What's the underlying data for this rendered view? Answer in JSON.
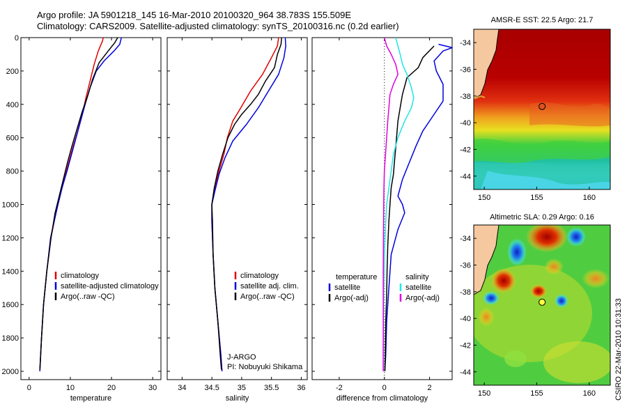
{
  "header": {
    "line1": "Argo profile: JA 5901218_145 16-Mar-2010 20100320_964 38.783S 155.509E",
    "line2": "Climatology: CARS2009. Satellite-adjusted climatology: synTS_20100316.nc (0.2d earlier)"
  },
  "colors": {
    "climatology": "#e00000",
    "satellite": "#0000dd",
    "argo": "#000000",
    "cyan": "#22e5e5",
    "magenta": "#e000e0",
    "land": "#f5c8a0"
  },
  "footer": {
    "credit": "CSIRO 22-Mar-2010 10:31:33"
  },
  "chart_data": [
    {
      "type": "line",
      "id": "temperature",
      "xlabel": "temperature",
      "ylabel": "",
      "xlim": [
        -2,
        32
      ],
      "ylim": [
        2050,
        0
      ],
      "xticks": [
        0,
        10,
        20,
        30
      ],
      "yticks": [
        0,
        200,
        400,
        600,
        800,
        1000,
        1200,
        1400,
        1600,
        1800,
        2000
      ],
      "legend": {
        "placement": "lower-center",
        "entries": [
          "climatology",
          "satellite-adjusted climatology",
          "Argo(..raw -QC)"
        ]
      },
      "series": [
        {
          "name": "climatology",
          "color": "#e00000",
          "points": [
            [
              18.0,
              0
            ],
            [
              17.8,
              20
            ],
            [
              16.8,
              80
            ],
            [
              15.8,
              160
            ],
            [
              14.8,
              260
            ],
            [
              13.8,
              360
            ],
            [
              12.9,
              460
            ],
            [
              11.8,
              560
            ],
            [
              10.6,
              660
            ],
            [
              9.5,
              760
            ],
            [
              8.4,
              860
            ],
            [
              7.4,
              960
            ],
            [
              6.4,
              1060
            ],
            [
              5.3,
              1200
            ],
            [
              4.3,
              1400
            ],
            [
              3.5,
              1600
            ],
            [
              3.0,
              1800
            ],
            [
              2.6,
              2000
            ]
          ]
        },
        {
          "name": "satellite-adjusted climatology",
          "color": "#0000dd",
          "points": [
            [
              22.4,
              0
            ],
            [
              22.0,
              40
            ],
            [
              20.6,
              80
            ],
            [
              18.2,
              140
            ],
            [
              16.3,
              200
            ],
            [
              14.8,
              300
            ],
            [
              13.6,
              400
            ],
            [
              12.5,
              500
            ],
            [
              11.4,
              600
            ],
            [
              10.3,
              700
            ],
            [
              9.2,
              800
            ],
            [
              8.0,
              900
            ],
            [
              7.0,
              1000
            ],
            [
              6.1,
              1100
            ],
            [
              5.2,
              1200
            ],
            [
              4.3,
              1400
            ],
            [
              3.5,
              1600
            ],
            [
              3.0,
              1800
            ],
            [
              2.6,
              2000
            ]
          ]
        },
        {
          "name": "Argo(..raw -QC)",
          "color": "#000000",
          "points": [
            [
              21.5,
              0
            ],
            [
              20.8,
              30
            ],
            [
              19.2,
              80
            ],
            [
              17.0,
              150
            ],
            [
              15.4,
              250
            ],
            [
              14.2,
              350
            ],
            [
              12.8,
              450
            ],
            [
              11.6,
              550
            ],
            [
              10.4,
              650
            ],
            [
              9.3,
              750
            ],
            [
              8.3,
              850
            ],
            [
              7.3,
              950
            ],
            [
              6.3,
              1050
            ],
            [
              5.3,
              1200
            ],
            [
              4.3,
              1400
            ],
            [
              3.5,
              1600
            ],
            [
              3.0,
              1800
            ],
            [
              2.6,
              1990
            ]
          ]
        }
      ]
    },
    {
      "type": "line",
      "id": "salinity",
      "xlabel": "salinity",
      "ylabel": "",
      "xlim": [
        33.75,
        36.1
      ],
      "ylim": [
        2050,
        0
      ],
      "xticks": [
        34,
        34.5,
        35,
        35.5,
        36
      ],
      "xticklabels": [
        "34",
        "34.5",
        "35",
        "35.5",
        "36"
      ],
      "legend": {
        "placement": "lower-right",
        "entries": [
          "climatology",
          "satellite adj. clim.",
          "Argo(..raw -QC)"
        ]
      },
      "annotations": [
        "J-ARGO",
        "PI: Nobuyuki Shikama"
      ],
      "series": [
        {
          "name": "climatology",
          "color": "#e00000",
          "points": [
            [
              35.62,
              0
            ],
            [
              35.6,
              50
            ],
            [
              35.5,
              120
            ],
            [
              35.35,
              220
            ],
            [
              35.15,
              320
            ],
            [
              34.97,
              430
            ],
            [
              34.85,
              500
            ],
            [
              34.76,
              600
            ],
            [
              34.7,
              700
            ],
            [
              34.62,
              800
            ],
            [
              34.55,
              900
            ],
            [
              34.5,
              1000
            ],
            [
              34.5,
              1100
            ],
            [
              34.52,
              1300
            ],
            [
              34.55,
              1500
            ],
            [
              34.6,
              1700
            ],
            [
              34.65,
              1900
            ],
            [
              34.67,
              2000
            ]
          ]
        },
        {
          "name": "satellite adj. clim.",
          "color": "#0000dd",
          "points": [
            [
              35.73,
              0
            ],
            [
              35.74,
              50
            ],
            [
              35.71,
              120
            ],
            [
              35.62,
              220
            ],
            [
              35.45,
              320
            ],
            [
              35.28,
              420
            ],
            [
              35.08,
              520
            ],
            [
              34.85,
              620
            ],
            [
              34.72,
              720
            ],
            [
              34.62,
              820
            ],
            [
              34.55,
              920
            ],
            [
              34.5,
              1000
            ],
            [
              34.5,
              1100
            ],
            [
              34.52,
              1300
            ],
            [
              34.55,
              1500
            ],
            [
              34.6,
              1700
            ],
            [
              34.65,
              1900
            ],
            [
              34.67,
              2000
            ]
          ]
        },
        {
          "name": "Argo(..raw -QC)",
          "color": "#000000",
          "points": [
            [
              35.67,
              0
            ],
            [
              35.66,
              40
            ],
            [
              35.6,
              100
            ],
            [
              35.55,
              180
            ],
            [
              35.4,
              260
            ],
            [
              35.28,
              340
            ],
            [
              35.15,
              400
            ],
            [
              35.0,
              460
            ],
            [
              34.88,
              520
            ],
            [
              34.77,
              600
            ],
            [
              34.68,
              700
            ],
            [
              34.6,
              800
            ],
            [
              34.54,
              900
            ],
            [
              34.5,
              1000
            ],
            [
              34.51,
              1100
            ],
            [
              34.52,
              1300
            ],
            [
              34.55,
              1500
            ],
            [
              34.6,
              1700
            ],
            [
              34.64,
              1900
            ],
            [
              34.66,
              1990
            ]
          ]
        }
      ]
    },
    {
      "type": "line",
      "id": "difference",
      "xlabel": "difference from climatology",
      "ylabel": "",
      "xlim": [
        -3.2,
        3.0
      ],
      "ylim": [
        2050,
        0
      ],
      "xticks": [
        -2,
        0,
        2
      ],
      "legend": {
        "placement": "lower-center",
        "columns": [
          {
            "header": "temperature",
            "entries": [
              "satellite",
              "Argo(-adj)"
            ]
          },
          {
            "header": "salinity",
            "entries": [
              "satellite",
              "Argo(-adj)"
            ]
          }
        ]
      },
      "series": [
        {
          "name": "satellite",
          "group": "temperature",
          "color": "#0000dd",
          "points": [
            [
              2.4,
              40
            ],
            [
              3.0,
              60
            ],
            [
              2.6,
              80
            ],
            [
              2.2,
              140
            ],
            [
              2.3,
              200
            ],
            [
              2.6,
              280
            ],
            [
              2.6,
              380
            ],
            [
              2.1,
              480
            ],
            [
              1.7,
              560
            ],
            [
              1.4,
              650
            ],
            [
              1.1,
              750
            ],
            [
              0.8,
              850
            ],
            [
              0.6,
              950
            ],
            [
              0.8,
              1000
            ],
            [
              0.9,
              1050
            ],
            [
              0.6,
              1150
            ],
            [
              0.3,
              1300
            ],
            [
              0.2,
              1500
            ],
            [
              0.1,
              1700
            ],
            [
              0.06,
              1900
            ],
            [
              0.02,
              2000
            ]
          ]
        },
        {
          "name": "Argo(-adj)",
          "group": "temperature",
          "color": "#000000",
          "points": [
            [
              2.2,
              50
            ],
            [
              1.7,
              120
            ],
            [
              1.5,
              180
            ],
            [
              1.0,
              240
            ],
            [
              0.8,
              340
            ],
            [
              0.7,
              420
            ],
            [
              0.6,
              500
            ],
            [
              0.55,
              580
            ],
            [
              0.5,
              660
            ],
            [
              0.45,
              740
            ],
            [
              0.4,
              820
            ],
            [
              0.3,
              900
            ],
            [
              0.25,
              1000
            ],
            [
              0.2,
              1100
            ],
            [
              0.15,
              1250
            ],
            [
              0.12,
              1400
            ],
            [
              0.1,
              1550
            ],
            [
              0.06,
              1700
            ],
            [
              0.04,
              1900
            ],
            [
              0.02,
              2000
            ]
          ]
        },
        {
          "name": "satellite",
          "group": "salinity",
          "color": "#22e5e5",
          "points": [
            [
              0.5,
              0
            ],
            [
              0.6,
              50
            ],
            [
              0.7,
              100
            ],
            [
              0.8,
              160
            ],
            [
              1.0,
              220
            ],
            [
              1.2,
              300
            ],
            [
              1.3,
              360
            ],
            [
              1.2,
              420
            ],
            [
              0.9,
              500
            ],
            [
              0.6,
              600
            ],
            [
              0.4,
              700
            ],
            [
              0.3,
              800
            ],
            [
              0.2,
              900
            ],
            [
              0.1,
              1000
            ],
            [
              0.06,
              1100
            ],
            [
              0.0,
              1300
            ],
            [
              -0.03,
              1500
            ],
            [
              -0.04,
              1700
            ],
            [
              -0.05,
              1900
            ],
            [
              -0.05,
              2000
            ]
          ]
        },
        {
          "name": "Argo(-adj)",
          "group": "salinity",
          "color": "#e000e0",
          "points": [
            [
              0.0,
              0
            ],
            [
              0.1,
              50
            ],
            [
              0.3,
              100
            ],
            [
              0.5,
              160
            ],
            [
              0.6,
              220
            ],
            [
              0.4,
              280
            ],
            [
              0.25,
              340
            ],
            [
              0.2,
              420
            ],
            [
              0.15,
              500
            ],
            [
              0.1,
              600
            ],
            [
              0.05,
              700
            ],
            [
              0.0,
              800
            ],
            [
              -0.02,
              900
            ],
            [
              -0.03,
              1000
            ],
            [
              -0.04,
              1200
            ],
            [
              -0.05,
              1400
            ],
            [
              -0.05,
              1600
            ],
            [
              -0.05,
              1800
            ],
            [
              -0.05,
              2000
            ]
          ]
        }
      ]
    },
    {
      "type": "heatmap",
      "id": "sst-map",
      "title": "AMSR-E SST: 22.5 Argo: 21.7",
      "xlim": [
        149,
        162
      ],
      "ylim": [
        -45,
        -33
      ],
      "xticks": [
        150,
        155,
        160
      ],
      "yticks": [
        -34,
        -36,
        -38,
        -40,
        -42,
        -44
      ],
      "xticklabels": [
        "150",
        "155",
        "160"
      ],
      "yticklabels": [
        "-34",
        "-36",
        "-38",
        "-40",
        "-42",
        "-44"
      ],
      "marker": {
        "lon": 155.509,
        "lat": -38.783
      }
    },
    {
      "type": "heatmap",
      "id": "sla-map",
      "title": "Altimetric SLA: 0.29 Argo: 0.16",
      "xlim": [
        149,
        162
      ],
      "ylim": [
        -45,
        -33
      ],
      "xticks": [
        150,
        155,
        160
      ],
      "yticks": [
        -34,
        -36,
        -38,
        -40,
        -42,
        -44
      ],
      "xticklabels": [
        "150",
        "155",
        "160"
      ],
      "yticklabels": [
        "-34",
        "-36",
        "-38",
        "-40",
        "-42",
        "-44"
      ],
      "marker": {
        "lon": 155.509,
        "lat": -38.783
      }
    }
  ]
}
